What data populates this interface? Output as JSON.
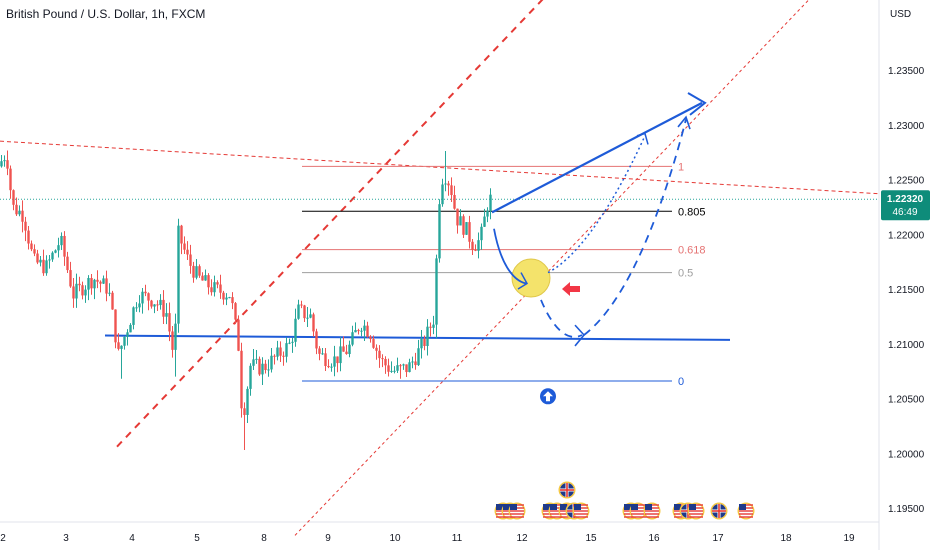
{
  "header": {
    "title": "British Pound / U.S. Dollar, 1h, FXCM"
  },
  "price_axis": {
    "currency": "USD",
    "current_price": "1.22320",
    "countdown": "46:49",
    "price_label_color": "#0e8c7a"
  },
  "colors": {
    "bull": "#26a69a",
    "bear": "#ef5350",
    "blue": "#1e5bd8",
    "red_trend": "#e53935",
    "fib_red": "#e57373",
    "fib_grey": "#9e9e9e",
    "fib_black": "#000000",
    "highlight": "#f4e36b"
  },
  "chart_data": {
    "type": "candlestick",
    "symbol": "GBPUSD",
    "timeframe": "1h",
    "ylim": [
      1.1935,
      1.241
    ],
    "x_ticks": [
      "2",
      "3",
      "4",
      "5",
      "8",
      "9",
      "10",
      "11",
      "12",
      "15",
      "16",
      "17",
      "18",
      "19"
    ],
    "x_tick_days": [
      2,
      3,
      4,
      5,
      8,
      9,
      10,
      11,
      12,
      15,
      16,
      17,
      18,
      19
    ],
    "y_ticks": [
      "1.23500",
      "1.23000",
      "1.22500",
      "1.22000",
      "1.21500",
      "1.21000",
      "1.20500",
      "1.20000",
      "1.19500"
    ],
    "y_tick_values": [
      1.235,
      1.23,
      1.225,
      1.22,
      1.215,
      1.21,
      1.205,
      1.2,
      1.195
    ],
    "grid": false,
    "candles_summary": {
      "start_price": 1.226,
      "low": 1.2002,
      "high": 1.2275,
      "last_close": 1.2232
    },
    "fibonacci": {
      "levels": [
        {
          "label": "1",
          "price": 1.2262,
          "color": "#e57373"
        },
        {
          "label": "0.805",
          "price": 1.2221,
          "color": "#000000"
        },
        {
          "label": "0.618",
          "price": 1.2186,
          "color": "#e57373"
        },
        {
          "label": "0.5",
          "price": 1.2165,
          "color": "#9e9e9e"
        },
        {
          "label": "0",
          "price": 1.2066,
          "color": "#1e5bd8"
        }
      ]
    },
    "horizontal_support": 1.2105,
    "current_price_line": 1.2232
  }
}
